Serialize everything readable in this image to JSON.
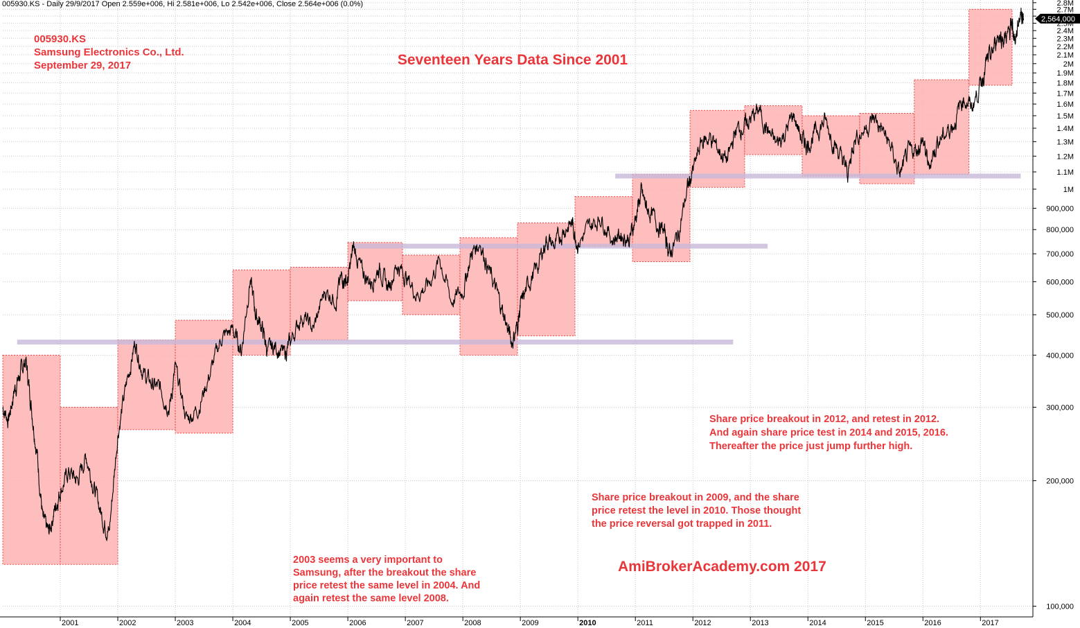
{
  "header": {
    "info": "005930.KS - Daily 29/9/2017 Open 2.559e+006, Hi 2.581e+006, Lo 2.542e+006, Close 2.564e+006 (0.0%)"
  },
  "titles": {
    "ticker": "005930.KS",
    "company": "Samsung Electronics Co., Ltd.",
    "date": "September 29, 2017",
    "main": "Seventeen Years Data Since 2001",
    "watermark": "AmiBrokerAcademy.com  2017"
  },
  "annotations": {
    "a2003": [
      "2003 seems a  very important to",
      "Samsung, after the breakout the share",
      "price retest the same level in 2004. And",
      "again retest the same level 2008."
    ],
    "a2009": [
      "Share price breakout in 2009, and the share",
      "price retest the level in 2010.  Those thought",
      "the price reversal got trapped in 2011."
    ],
    "a2012": [
      "Share price breakout in 2012, and retest in 2012.",
      "And again share price test in 2014 and 2015, 2016.",
      "Thereafter the price just jump further high."
    ]
  },
  "colors": {
    "annotation": "#e8363a",
    "range_box_fill": "#ffb3b3",
    "range_box_border": "#e84444",
    "support_line": "#c8b8d8",
    "price_line": "#000000",
    "grid": "#c8c8c8",
    "last_price_badge": "#000000"
  },
  "chart_data": {
    "type": "line",
    "title": "Seventeen Years Data Since 2001",
    "xlabel": "",
    "ylabel": "",
    "scale": "log",
    "ylim": [
      95000,
      2820000
    ],
    "xlim": [
      2000.0,
      2017.9
    ],
    "grid": true,
    "y_axis_side": "right",
    "y_ticks": [
      {
        "v": 100000,
        "label": "100,000"
      },
      {
        "v": 200000,
        "label": "200,000"
      },
      {
        "v": 300000,
        "label": "300,000"
      },
      {
        "v": 400000,
        "label": "400,000"
      },
      {
        "v": 500000,
        "label": "500,000"
      },
      {
        "v": 600000,
        "label": "600,000"
      },
      {
        "v": 700000,
        "label": "700,000"
      },
      {
        "v": 800000,
        "label": "800,000"
      },
      {
        "v": 900000,
        "label": "900,000"
      },
      {
        "v": 1000000,
        "label": "1M"
      },
      {
        "v": 1100000,
        "label": "1.1M"
      },
      {
        "v": 1200000,
        "label": "1.2M"
      },
      {
        "v": 1300000,
        "label": "1.3M"
      },
      {
        "v": 1400000,
        "label": "1.4M"
      },
      {
        "v": 1500000,
        "label": "1.5M"
      },
      {
        "v": 1600000,
        "label": "1.6M"
      },
      {
        "v": 1700000,
        "label": "1.7M"
      },
      {
        "v": 1800000,
        "label": "1.8M"
      },
      {
        "v": 1900000,
        "label": "1.9M"
      },
      {
        "v": 2000000,
        "label": "2M"
      },
      {
        "v": 2100000,
        "label": "2.1M"
      },
      {
        "v": 2200000,
        "label": "2.2M"
      },
      {
        "v": 2300000,
        "label": "2.3M"
      },
      {
        "v": 2400000,
        "label": "2.4M"
      },
      {
        "v": 2500000,
        "label": "2.5M"
      },
      {
        "v": 2600000,
        "label": "2.6M"
      },
      {
        "v": 2700000,
        "label": "2.7M"
      },
      {
        "v": 2800000,
        "label": "2.8M"
      }
    ],
    "x_ticks": [
      {
        "v": 2001,
        "label": "2001",
        "bold": false
      },
      {
        "v": 2002,
        "label": "2002",
        "bold": false
      },
      {
        "v": 2003,
        "label": "2003",
        "bold": false
      },
      {
        "v": 2004,
        "label": "2004",
        "bold": false
      },
      {
        "v": 2005,
        "label": "2005",
        "bold": false
      },
      {
        "v": 2006,
        "label": "2006",
        "bold": false
      },
      {
        "v": 2007,
        "label": "2007",
        "bold": false
      },
      {
        "v": 2008,
        "label": "2008",
        "bold": false
      },
      {
        "v": 2009,
        "label": "2009",
        "bold": false
      },
      {
        "v": 2010,
        "label": "2010",
        "bold": true
      },
      {
        "v": 2011,
        "label": "2011",
        "bold": false
      },
      {
        "v": 2012,
        "label": "2012",
        "bold": false
      },
      {
        "v": 2013,
        "label": "2013",
        "bold": false
      },
      {
        "v": 2014,
        "label": "2014",
        "bold": false
      },
      {
        "v": 2015,
        "label": "2015",
        "bold": false
      },
      {
        "v": 2016,
        "label": "2016",
        "bold": false
      },
      {
        "v": 2017,
        "label": "2017",
        "bold": false
      }
    ],
    "last_price": {
      "value": 2564000,
      "label": "2,564,000"
    },
    "series": [
      {
        "x": [
          2000.0,
          2000.1,
          2000.2,
          2000.3,
          2000.4,
          2000.5,
          2000.6,
          2000.7,
          2000.8,
          2000.9,
          2001.0,
          2001.15,
          2001.3,
          2001.45,
          2001.6,
          2001.75,
          2001.85,
          2002.0,
          2002.15,
          2002.3,
          2002.45,
          2002.6,
          2002.75,
          2002.9,
          2003.0,
          2003.2,
          2003.4,
          2003.6,
          2003.8,
          2004.0,
          2004.15,
          2004.3,
          2004.4,
          2004.5,
          2004.6,
          2004.75,
          2004.9,
          2005.0,
          2005.2,
          2005.4,
          2005.6,
          2005.8,
          2005.9,
          2006.0,
          2006.1,
          2006.25,
          2006.4,
          2006.55,
          2006.7,
          2006.85,
          2007.0,
          2007.2,
          2007.4,
          2007.6,
          2007.8,
          2008.0,
          2008.15,
          2008.3,
          2008.45,
          2008.6,
          2008.75,
          2008.85,
          2008.95,
          2009.0,
          2009.15,
          2009.3,
          2009.45,
          2009.6,
          2009.75,
          2009.9,
          2010.0,
          2010.2,
          2010.4,
          2010.6,
          2010.75,
          2010.9,
          2011.0,
          2011.1,
          2011.2,
          2011.35,
          2011.5,
          2011.6,
          2011.75,
          2011.9,
          2012.0,
          2012.15,
          2012.3,
          2012.45,
          2012.6,
          2012.75,
          2012.9,
          2013.0,
          2013.15,
          2013.3,
          2013.45,
          2013.6,
          2013.75,
          2013.9,
          2014.0,
          2014.15,
          2014.3,
          2014.45,
          2014.6,
          2014.7,
          2014.8,
          2015.0,
          2015.15,
          2015.3,
          2015.45,
          2015.6,
          2015.75,
          2015.9,
          2016.0,
          2016.1,
          2016.25,
          2016.4,
          2016.55,
          2016.7,
          2016.85,
          2017.0,
          2017.1,
          2017.2,
          2017.3,
          2017.4,
          2017.5,
          2017.55,
          2017.6,
          2017.7,
          2017.75
        ],
        "values": [
          300000,
          280000,
          330000,
          360000,
          390000,
          300000,
          230000,
          160000,
          150000,
          170000,
          190000,
          210000,
          200000,
          230000,
          190000,
          160000,
          150000,
          260000,
          340000,
          430000,
          360000,
          340000,
          330000,
          300000,
          370000,
          280000,
          300000,
          360000,
          440000,
          460000,
          410000,
          610000,
          500000,
          470000,
          410000,
          420000,
          400000,
          430000,
          500000,
          460000,
          570000,
          550000,
          620000,
          600000,
          730000,
          630000,
          600000,
          650000,
          580000,
          660000,
          620000,
          560000,
          590000,
          680000,
          540000,
          570000,
          700000,
          750000,
          640000,
          560000,
          480000,
          430000,
          470000,
          520000,
          600000,
          650000,
          760000,
          730000,
          800000,
          830000,
          740000,
          810000,
          860000,
          760000,
          780000,
          760000,
          850000,
          980000,
          900000,
          840000,
          790000,
          700000,
          780000,
          1000000,
          1100000,
          1300000,
          1330000,
          1240000,
          1170000,
          1390000,
          1420000,
          1470000,
          1550000,
          1380000,
          1280000,
          1360000,
          1510000,
          1310000,
          1280000,
          1380000,
          1460000,
          1300000,
          1170000,
          1090000,
          1320000,
          1400000,
          1480000,
          1380000,
          1250000,
          1080000,
          1220000,
          1250000,
          1310000,
          1130000,
          1300000,
          1360000,
          1450000,
          1660000,
          1570000,
          1780000,
          2000000,
          2100000,
          2350000,
          2300000,
          2350000,
          2500000,
          2270000,
          2680000,
          2564000
        ]
      }
    ],
    "range_boxes": [
      {
        "x0": 2000.0,
        "x1": 2001.0,
        "y0": 126000,
        "y1": 400000
      },
      {
        "x0": 2001.0,
        "x1": 2002.0,
        "y0": 126000,
        "y1": 300000
      },
      {
        "x0": 2002.0,
        "x1": 2003.0,
        "y0": 265000,
        "y1": 435000
      },
      {
        "x0": 2003.0,
        "x1": 2004.0,
        "y0": 260000,
        "y1": 485000
      },
      {
        "x0": 2004.0,
        "x1": 2005.0,
        "y0": 400000,
        "y1": 640000
      },
      {
        "x0": 2005.0,
        "x1": 2006.0,
        "y0": 435000,
        "y1": 650000
      },
      {
        "x0": 2006.0,
        "x1": 2006.95,
        "y0": 540000,
        "y1": 745000
      },
      {
        "x0": 2006.95,
        "x1": 2007.95,
        "y0": 500000,
        "y1": 695000
      },
      {
        "x0": 2007.95,
        "x1": 2008.95,
        "y0": 400000,
        "y1": 765000
      },
      {
        "x0": 2008.95,
        "x1": 2009.95,
        "y0": 445000,
        "y1": 830000
      },
      {
        "x0": 2009.95,
        "x1": 2010.95,
        "y0": 730000,
        "y1": 960000
      },
      {
        "x0": 2010.95,
        "x1": 2011.95,
        "y0": 670000,
        "y1": 1085000
      },
      {
        "x0": 2011.95,
        "x1": 2012.9,
        "y0": 1010000,
        "y1": 1545000
      },
      {
        "x0": 2012.9,
        "x1": 2013.9,
        "y0": 1210000,
        "y1": 1585000
      },
      {
        "x0": 2013.9,
        "x1": 2014.9,
        "y0": 1075000,
        "y1": 1500000
      },
      {
        "x0": 2014.9,
        "x1": 2015.85,
        "y0": 1030000,
        "y1": 1520000
      },
      {
        "x0": 2015.85,
        "x1": 2016.8,
        "y0": 1085000,
        "y1": 1830000
      },
      {
        "x0": 2016.8,
        "x1": 2017.55,
        "y0": 1775000,
        "y1": 2700000
      }
    ],
    "support_lines": [
      {
        "x0": 2000.25,
        "x1": 2012.7,
        "y": 430000
      },
      {
        "x0": 2006.1,
        "x1": 2013.3,
        "y": 730000
      },
      {
        "x0": 2010.65,
        "x1": 2017.7,
        "y": 1075000
      }
    ]
  }
}
